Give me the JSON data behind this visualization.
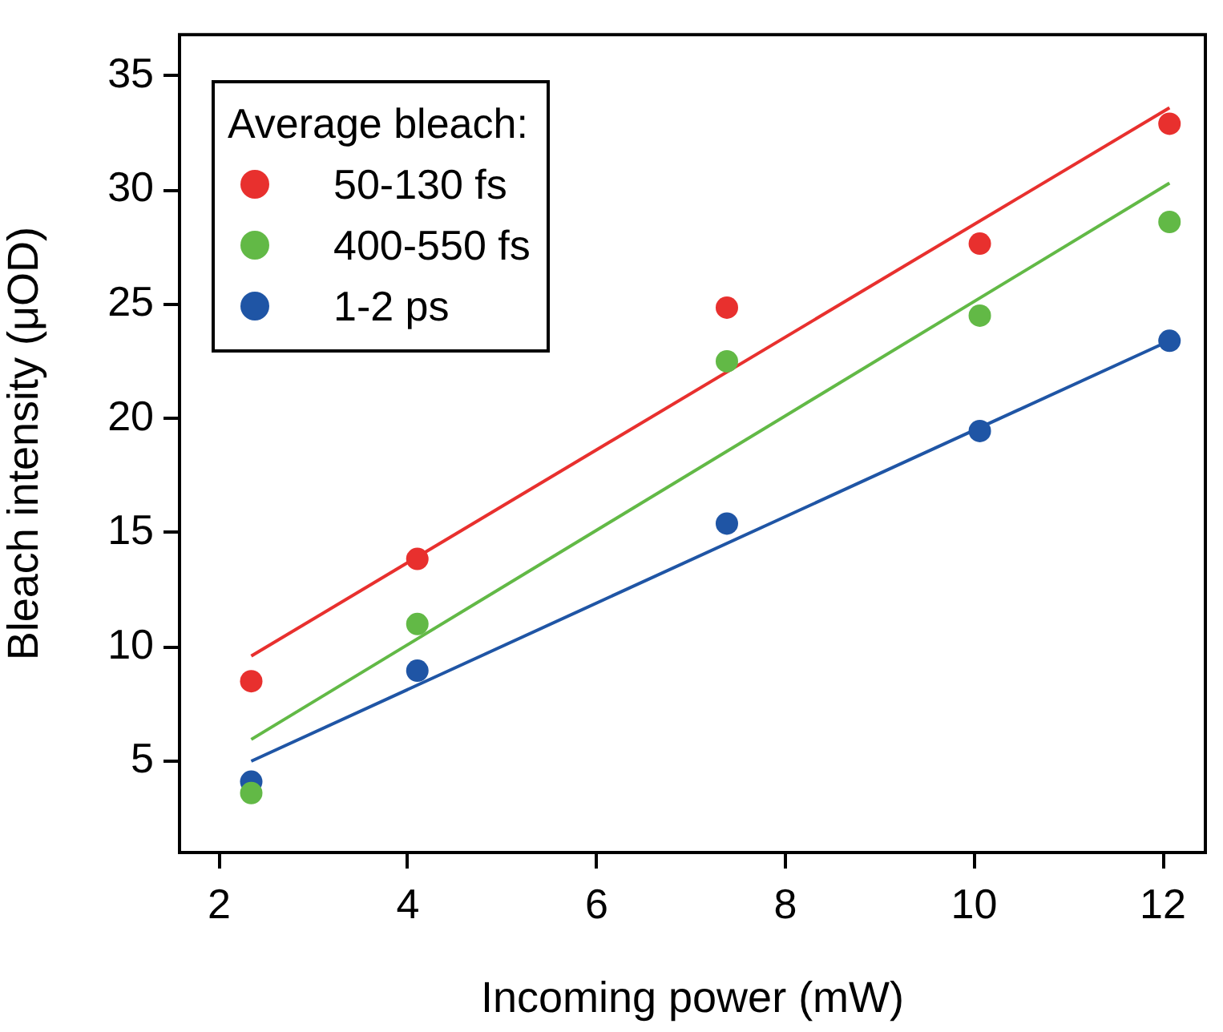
{
  "chart_data": {
    "type": "scatter",
    "xlabel": "Incoming power (mW)",
    "ylabel": "Bleach intensity (μOD)",
    "legend_title": "Average bleach:",
    "legend": "top left",
    "grid": false,
    "marker": "circle",
    "xlim": [
      1.58,
      12.45
    ],
    "xticks": [
      2,
      4,
      6,
      8,
      10,
      12
    ],
    "ylim": [
      1,
      36.8
    ],
    "yticks": [
      5,
      10,
      15,
      20,
      25,
      30,
      35
    ],
    "series": [
      {
        "name": "50-130 fs",
        "color": "#e8302e",
        "x": [
          2.34,
          4.1,
          7.38,
          10.06,
          12.07
        ],
        "values": [
          8.5,
          13.85,
          24.85,
          27.65,
          32.9
        ]
      },
      {
        "name": "400-550 fs",
        "color": "#62b946",
        "x": [
          2.34,
          4.1,
          7.38,
          10.06,
          12.07
        ],
        "values": [
          3.6,
          11.0,
          22.5,
          24.5,
          28.6
        ]
      },
      {
        "name": "1-2 ps",
        "color": "#1f55a5",
        "x": [
          2.34,
          4.1,
          7.38,
          10.06,
          12.07
        ],
        "values": [
          4.1,
          8.96,
          15.4,
          19.45,
          23.4
        ]
      },
      {
        "type": "line",
        "color": "#e8302e",
        "marker": "none",
        "x": [
          2.34,
          12.07
        ],
        "values": [
          9.6,
          33.6
        ]
      },
      {
        "type": "line",
        "color": "#62b946",
        "marker": "none",
        "x": [
          2.34,
          12.07
        ],
        "values": [
          5.95,
          30.3
        ]
      },
      {
        "type": "line",
        "color": "#1f55a5",
        "marker": "none",
        "x": [
          2.34,
          12.07
        ],
        "values": [
          5.0,
          23.4
        ]
      }
    ]
  }
}
